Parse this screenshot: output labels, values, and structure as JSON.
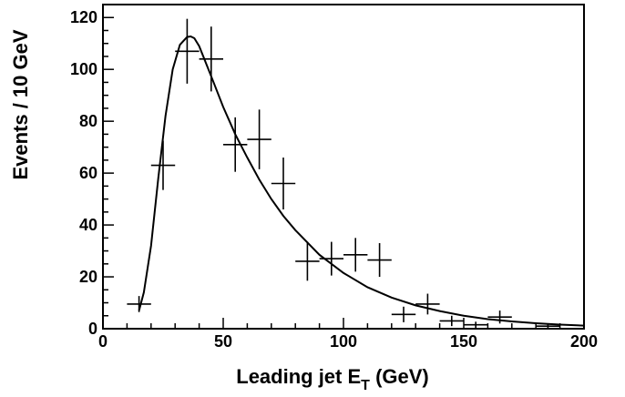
{
  "chart_data": {
    "type": "scatter",
    "xlabel": {
      "main": "Leading jet E",
      "sub": "T",
      "tail": " (GeV)"
    },
    "ylabel": "Events / 10 GeV",
    "xlim": [
      0,
      200
    ],
    "ylim": [
      0,
      125
    ],
    "xticks": [
      0,
      50,
      100,
      150,
      200
    ],
    "yticks": [
      0,
      20,
      40,
      60,
      80,
      100,
      120
    ],
    "grid": false,
    "series": [
      {
        "kind": "data-with-errors",
        "x_half_width": 5,
        "points": [
          {
            "x": 15,
            "y": 9.5,
            "err": 3.1
          },
          {
            "x": 25,
            "y": 63,
            "err": 9.5
          },
          {
            "x": 35,
            "y": 107,
            "err": 12.5
          },
          {
            "x": 45,
            "y": 104,
            "err": 12.5
          },
          {
            "x": 55,
            "y": 71,
            "err": 10.5
          },
          {
            "x": 65,
            "y": 73,
            "err": 11.5
          },
          {
            "x": 75,
            "y": 56,
            "err": 10
          },
          {
            "x": 85,
            "y": 26,
            "err": 7.5
          },
          {
            "x": 95,
            "y": 27,
            "err": 6.5
          },
          {
            "x": 105,
            "y": 28.5,
            "err": 6.5
          },
          {
            "x": 115,
            "y": 26.5,
            "err": 6.5
          },
          {
            "x": 125,
            "y": 5.5,
            "err": 3
          },
          {
            "x": 135,
            "y": 9.5,
            "err": 4
          },
          {
            "x": 145,
            "y": 3,
            "err": 2
          },
          {
            "x": 155,
            "y": 1.5,
            "err": 1.2
          },
          {
            "x": 165,
            "y": 4.5,
            "err": 2.5
          },
          {
            "x": 185,
            "y": 1,
            "err": 1
          }
        ]
      },
      {
        "kind": "fit-curve",
        "x": [
          15,
          17,
          20,
          23,
          26,
          29,
          32,
          35,
          36.5,
          38,
          40,
          43,
          46,
          50,
          55,
          60,
          65,
          70,
          75,
          80,
          90,
          100,
          110,
          120,
          130,
          140,
          150,
          160,
          170,
          180,
          190,
          200
        ],
        "y": [
          7,
          14,
          32,
          58,
          82,
          100,
          109.5,
          112.5,
          112.7,
          112,
          109,
          102,
          95,
          85.5,
          75,
          66,
          57.5,
          50,
          43.5,
          38,
          28.5,
          21.5,
          16,
          12,
          9,
          6.8,
          5,
          3.7,
          2.8,
          2.1,
          1.6,
          1.2
        ]
      }
    ]
  }
}
